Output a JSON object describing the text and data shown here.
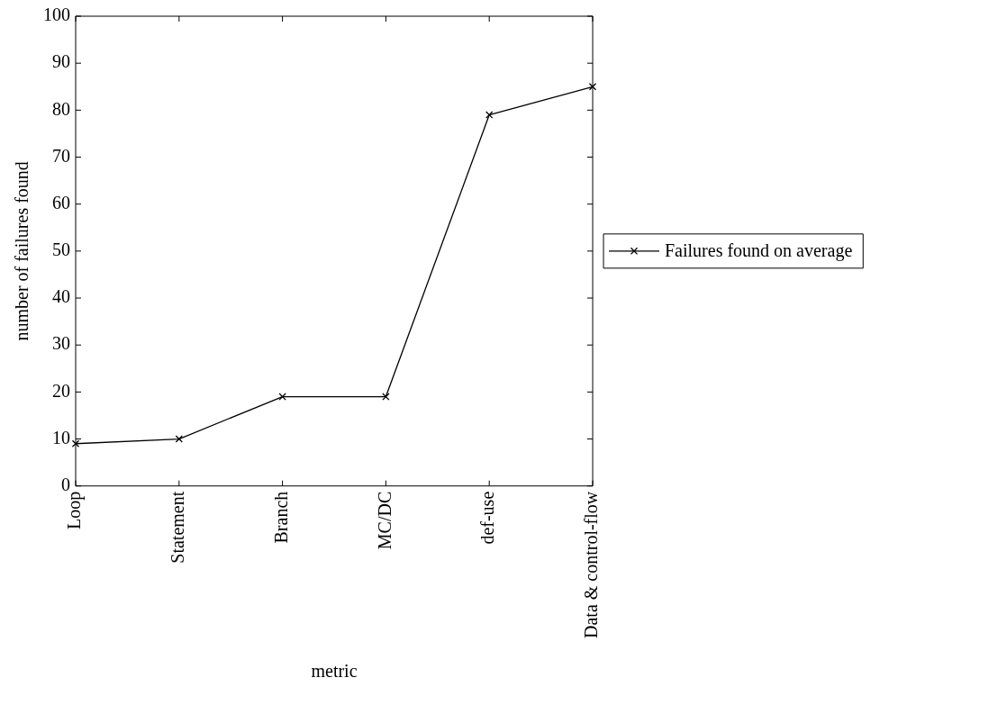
{
  "chart_data": {
    "type": "line",
    "xlabel": "metric",
    "ylabel": "number of failures found",
    "categories": [
      "Loop",
      "Statement",
      "Branch",
      "MC/DC",
      "def-use",
      "Data & control-flow"
    ],
    "series": [
      {
        "name": "Failures found on average",
        "color": "#000000",
        "values": [
          9,
          10,
          19,
          19,
          79,
          85
        ]
      }
    ],
    "ylim": [
      0,
      100
    ],
    "yticks": [
      0,
      10,
      20,
      30,
      40,
      50,
      60,
      70,
      80,
      90,
      100
    ],
    "grid": false,
    "legend": "right",
    "marker": "cross",
    "line_style": "solid"
  }
}
